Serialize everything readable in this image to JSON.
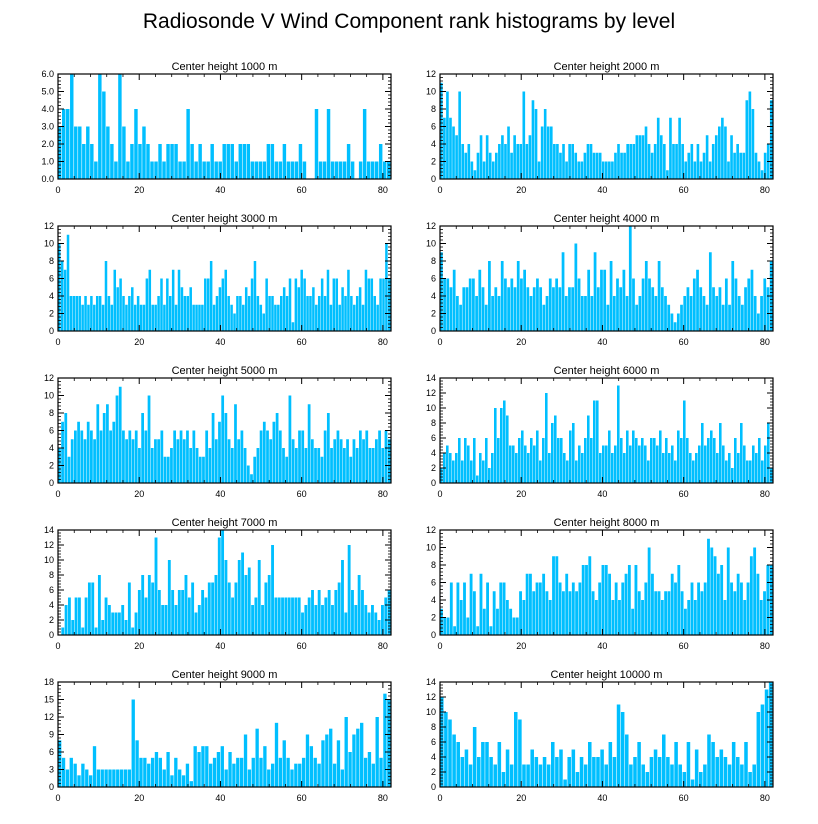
{
  "title": "Radiosonde V Wind Component rank histograms by level",
  "colors": {
    "bar": "#00BFFF",
    "axis": "#000000",
    "background": "#FFFFFF"
  },
  "chart_data": [
    {
      "type": "bar",
      "title": "Center height 1000 m",
      "xlim": [
        0,
        82
      ],
      "ylim": [
        0,
        6
      ],
      "xticks": [
        0,
        20,
        40,
        60,
        80
      ],
      "yticks": [
        0,
        1,
        2,
        3,
        4,
        5,
        6
      ],
      "ytick_labels": [
        "0.0",
        "1.0",
        "2.0",
        "3.0",
        "4.0",
        "5.0",
        "6.0"
      ],
      "values": [
        3,
        4,
        4,
        6,
        3,
        3,
        2,
        3,
        2,
        1,
        6,
        5,
        3,
        2,
        1,
        6,
        3,
        1,
        2,
        4,
        2,
        3,
        2,
        1,
        1,
        2,
        1,
        2,
        2,
        2,
        1,
        1,
        4,
        2,
        1,
        2,
        1,
        1,
        2,
        1,
        1,
        2,
        2,
        2,
        1,
        2,
        2,
        2,
        1,
        1,
        1,
        1,
        2,
        2,
        1,
        1,
        2,
        1,
        1,
        1,
        2,
        1,
        0,
        0,
        4,
        1,
        1,
        4,
        1,
        1,
        1,
        1,
        2,
        1,
        0,
        1,
        4,
        1,
        1,
        1,
        2,
        1,
        1
      ]
    },
    {
      "type": "bar",
      "title": "Center height 2000 m",
      "xlim": [
        0,
        82
      ],
      "ylim": [
        0,
        12
      ],
      "xticks": [
        0,
        20,
        40,
        60,
        80
      ],
      "yticks": [
        0,
        2,
        4,
        6,
        8,
        10,
        12
      ],
      "ytick_labels": [
        "0",
        "2",
        "4",
        "6",
        "8",
        "10",
        "12"
      ],
      "values": [
        11,
        7,
        10,
        7,
        6,
        5,
        10,
        4,
        3,
        4,
        2,
        1,
        3,
        5,
        2,
        5,
        3,
        2,
        3,
        4,
        5,
        4,
        6,
        3,
        5,
        4,
        4,
        10,
        4,
        5,
        9,
        8,
        2,
        6,
        8,
        6,
        6,
        4,
        4,
        3,
        4,
        2,
        4,
        4,
        3,
        2,
        2,
        3,
        4,
        4,
        3,
        3,
        3,
        2,
        2,
        2,
        2,
        3,
        4,
        3,
        3,
        4,
        4,
        4,
        5,
        5,
        5,
        6,
        4,
        3,
        4,
        7,
        5,
        4,
        1,
        7,
        4,
        4,
        7,
        4,
        2,
        3,
        4,
        2,
        4,
        2,
        3,
        5,
        2,
        4,
        5,
        6,
        7,
        6,
        2,
        5,
        3,
        4,
        3,
        3,
        9,
        10,
        8,
        3,
        2,
        1,
        3,
        4,
        9
      ]
    },
    {
      "type": "bar",
      "title": "Center height 3000 m",
      "xlim": [
        0,
        82
      ],
      "ylim": [
        0,
        12
      ],
      "xticks": [
        0,
        20,
        40,
        60,
        80
      ],
      "yticks": [
        0,
        2,
        4,
        6,
        8,
        10,
        12
      ],
      "ytick_labels": [
        "0",
        "2",
        "4",
        "6",
        "8",
        "10",
        "12"
      ],
      "values": [
        10,
        8,
        7,
        11,
        4,
        4,
        4,
        4,
        3,
        4,
        3,
        4,
        3,
        4,
        4,
        3,
        8,
        4,
        3,
        7,
        5,
        6,
        4,
        3,
        4,
        5,
        3,
        4,
        3,
        3,
        6,
        7,
        3,
        3,
        4,
        6,
        3,
        6,
        4,
        7,
        3,
        7,
        5,
        4,
        4,
        5,
        3,
        3,
        3,
        3,
        6,
        6,
        8,
        3,
        4,
        5,
        6,
        7,
        4,
        3,
        2,
        4,
        4,
        3,
        5,
        4,
        6,
        8,
        4,
        3,
        2,
        6,
        4,
        4,
        3,
        3,
        4,
        5,
        4,
        6,
        1,
        6,
        5,
        7,
        6,
        4,
        4,
        5,
        3,
        4,
        6,
        4,
        7,
        3,
        6,
        6,
        3,
        5,
        4,
        7,
        4,
        3,
        4,
        5,
        3,
        7,
        6,
        6,
        4,
        3,
        6,
        6,
        10,
        6
      ]
    },
    {
      "type": "bar",
      "title": "Center height 4000 m",
      "xlim": [
        0,
        82
      ],
      "ylim": [
        0,
        12
      ],
      "xticks": [
        0,
        20,
        40,
        60,
        80
      ],
      "yticks": [
        0,
        2,
        4,
        6,
        8,
        10,
        12
      ],
      "ytick_labels": [
        "0",
        "2",
        "4",
        "6",
        "8",
        "10",
        "12"
      ],
      "values": [
        9,
        6,
        6,
        5,
        7,
        4,
        3,
        5,
        5,
        6,
        6,
        4,
        7,
        5,
        3,
        8,
        4,
        5,
        4,
        8,
        6,
        5,
        6,
        5,
        8,
        6,
        7,
        5,
        4,
        5,
        6,
        5,
        3,
        4,
        6,
        5,
        6,
        5,
        9,
        4,
        5,
        5,
        10,
        6,
        4,
        4,
        7,
        4,
        9,
        5,
        7,
        7,
        3,
        8,
        4,
        6,
        5,
        7,
        4,
        12,
        6,
        3,
        4,
        6,
        8,
        6,
        5,
        4,
        8,
        5,
        4,
        3,
        2,
        1,
        2,
        3,
        4,
        5,
        4,
        6,
        7,
        5,
        4,
        3,
        9,
        5,
        4,
        5,
        3,
        6,
        3,
        8,
        6,
        4,
        3,
        5,
        6,
        7,
        4,
        2,
        4,
        6,
        5,
        8
      ]
    },
    {
      "type": "bar",
      "title": "Center height 5000 m",
      "xlim": [
        0,
        82
      ],
      "ylim": [
        0,
        12
      ],
      "xticks": [
        0,
        20,
        40,
        60,
        80
      ],
      "yticks": [
        0,
        2,
        4,
        6,
        8,
        10,
        12
      ],
      "ytick_labels": [
        "0",
        "2",
        "4",
        "6",
        "8",
        "10",
        "12"
      ],
      "values": [
        4,
        7,
        8,
        3,
        5,
        6,
        7,
        6,
        5,
        7,
        6,
        5,
        9,
        6,
        8,
        9,
        6,
        7,
        10,
        11,
        6,
        5,
        6,
        5,
        6,
        4,
        8,
        6,
        10,
        4,
        5,
        5,
        6,
        3,
        3,
        4,
        6,
        5,
        6,
        5,
        6,
        4,
        6,
        4,
        3,
        3,
        6,
        4,
        8,
        5,
        7,
        10,
        8,
        5,
        4,
        9,
        5,
        6,
        4,
        2,
        1,
        3,
        4,
        6,
        7,
        6,
        5,
        7,
        8,
        6,
        4,
        3,
        10,
        5,
        4,
        6,
        6,
        4,
        9,
        5,
        4,
        4,
        3,
        6,
        8,
        4,
        5,
        6,
        5,
        4,
        5,
        3,
        5,
        4,
        6,
        5,
        6,
        4,
        4,
        5,
        6,
        4,
        6,
        5
      ]
    },
    {
      "type": "bar",
      "title": "Center height 6000 m",
      "xlim": [
        0,
        82
      ],
      "ylim": [
        0,
        14
      ],
      "xticks": [
        0,
        20,
        40,
        60,
        80
      ],
      "yticks": [
        0,
        2,
        4,
        6,
        8,
        10,
        12,
        14
      ],
      "ytick_labels": [
        "0",
        "2",
        "4",
        "6",
        "8",
        "10",
        "12",
        "14"
      ],
      "values": [
        2,
        4,
        5,
        4,
        3,
        4,
        6,
        3,
        6,
        5,
        3,
        6,
        1,
        4,
        3,
        6,
        2,
        4,
        10,
        6,
        10,
        11,
        9,
        5,
        5,
        4,
        6,
        7,
        5,
        4,
        6,
        5,
        7,
        3,
        6,
        12,
        4,
        8,
        9,
        6,
        6,
        4,
        3,
        7,
        8,
        3,
        5,
        4,
        6,
        9,
        6,
        11,
        11,
        4,
        5,
        5,
        7,
        4,
        5,
        13,
        6,
        4,
        7,
        5,
        7,
        6,
        5,
        6,
        5,
        3,
        6,
        6,
        5,
        7,
        4,
        6,
        4,
        5,
        3,
        7,
        6,
        11,
        6,
        4,
        3,
        4,
        5,
        8,
        5,
        6,
        7,
        6,
        4,
        8,
        5,
        3,
        4,
        2,
        6,
        4,
        8,
        5,
        3,
        3,
        5,
        4,
        6,
        3,
        5,
        8,
        2
      ]
    },
    {
      "type": "bar",
      "title": "Center height 7000 m",
      "xlim": [
        0,
        82
      ],
      "ylim": [
        0,
        14
      ],
      "xticks": [
        0,
        20,
        40,
        60,
        80
      ],
      "yticks": [
        0,
        2,
        4,
        6,
        8,
        10,
        12,
        14
      ],
      "ytick_labels": [
        "0",
        "2",
        "4",
        "6",
        "8",
        "10",
        "12",
        "14"
      ],
      "values": [
        0,
        1,
        4,
        5,
        2,
        5,
        5,
        1,
        5,
        7,
        7,
        1,
        8,
        2,
        5,
        4,
        3,
        3,
        3,
        4,
        2,
        7,
        1,
        3,
        6,
        8,
        5,
        8,
        7,
        13,
        6,
        4,
        4,
        10,
        6,
        4,
        6,
        6,
        8,
        5,
        7,
        3,
        4,
        6,
        5,
        7,
        7,
        8,
        13,
        14,
        10,
        7,
        5,
        7,
        10,
        11,
        8,
        9,
        4,
        5,
        10,
        4,
        7,
        8,
        12,
        5,
        5,
        5,
        5,
        5,
        5,
        5,
        5,
        3,
        4,
        5,
        6,
        4,
        6,
        4,
        5,
        6,
        4,
        6,
        7,
        10,
        3,
        12,
        6,
        4,
        8,
        6,
        4,
        3,
        4,
        3,
        2,
        4,
        5,
        6
      ]
    },
    {
      "type": "bar",
      "title": "Center height 8000 m",
      "xlim": [
        0,
        82
      ],
      "ylim": [
        0,
        12
      ],
      "xticks": [
        0,
        20,
        40,
        60,
        80
      ],
      "yticks": [
        0,
        2,
        4,
        6,
        8,
        10,
        12
      ],
      "ytick_labels": [
        "0",
        "2",
        "4",
        "6",
        "8",
        "10",
        "12"
      ],
      "values": [
        3,
        2,
        2,
        6,
        1,
        6,
        4,
        6,
        2,
        7,
        5,
        1,
        7,
        3,
        6,
        1,
        5,
        3,
        6,
        6,
        4,
        3,
        2,
        2,
        5,
        4,
        7,
        7,
        5,
        6,
        6,
        7,
        5,
        4,
        9,
        9,
        6,
        5,
        7,
        5,
        6,
        5,
        6,
        8,
        8,
        9,
        5,
        4,
        6,
        8,
        8,
        7,
        4,
        6,
        4,
        6,
        7,
        8,
        3,
        8,
        5,
        4,
        6,
        10,
        7,
        5,
        5,
        4,
        5,
        5,
        7,
        6,
        8,
        5,
        3,
        4,
        6,
        4,
        6,
        5,
        6,
        11,
        10,
        9,
        7,
        8,
        4,
        10,
        6,
        5,
        7,
        6,
        4,
        6,
        9,
        10,
        7,
        4,
        5,
        8,
        8
      ]
    },
    {
      "type": "bar",
      "title": "Center height 9000 m",
      "xlim": [
        0,
        82
      ],
      "ylim": [
        0,
        18
      ],
      "xticks": [
        0,
        20,
        40,
        60,
        80
      ],
      "yticks": [
        0,
        3,
        6,
        9,
        12,
        15,
        18
      ],
      "ytick_labels": [
        "0",
        "3",
        "6",
        "9",
        "12",
        "15",
        "18"
      ],
      "values": [
        8,
        5,
        3,
        5,
        4,
        2,
        4,
        3,
        2,
        7,
        3,
        3,
        3,
        3,
        3,
        3,
        3,
        3,
        3,
        15,
        8,
        5,
        5,
        4,
        5,
        6,
        5,
        3,
        6,
        2,
        5,
        3,
        2,
        4,
        1,
        7,
        6,
        7,
        7,
        4,
        5,
        6,
        7,
        3,
        6,
        4,
        5,
        5,
        9,
        3,
        5,
        10,
        5,
        7,
        3,
        4,
        11,
        5,
        8,
        5,
        3,
        4,
        4,
        5,
        9,
        7,
        5,
        4,
        8,
        9,
        10,
        4,
        8,
        3,
        12,
        6,
        9,
        10,
        11,
        5,
        6,
        4,
        12,
        5,
        16,
        15
      ]
    },
    {
      "type": "bar",
      "title": "Center height 10000 m",
      "xlim": [
        0,
        82
      ],
      "ylim": [
        0,
        14
      ],
      "xticks": [
        0,
        20,
        40,
        60,
        80
      ],
      "yticks": [
        0,
        2,
        4,
        6,
        8,
        10,
        12,
        14
      ],
      "ytick_labels": [
        "0",
        "2",
        "4",
        "6",
        "8",
        "10",
        "12",
        "14"
      ],
      "values": [
        12,
        10,
        9,
        7,
        6,
        4,
        5,
        3,
        8,
        4,
        6,
        6,
        4,
        3,
        6,
        2,
        5,
        3,
        10,
        9,
        3,
        3,
        5,
        4,
        3,
        4,
        3,
        6,
        4,
        5,
        1,
        4,
        5,
        2,
        4,
        3,
        6,
        4,
        4,
        5,
        3,
        6,
        4,
        11,
        10,
        7,
        3,
        4,
        6,
        3,
        2,
        4,
        5,
        4,
        7,
        4,
        3,
        6,
        3,
        2,
        6,
        1,
        5,
        2,
        3,
        7,
        6,
        4,
        5,
        4,
        3,
        6,
        4,
        3,
        6,
        2,
        3,
        10,
        11,
        13,
        14
      ]
    }
  ]
}
